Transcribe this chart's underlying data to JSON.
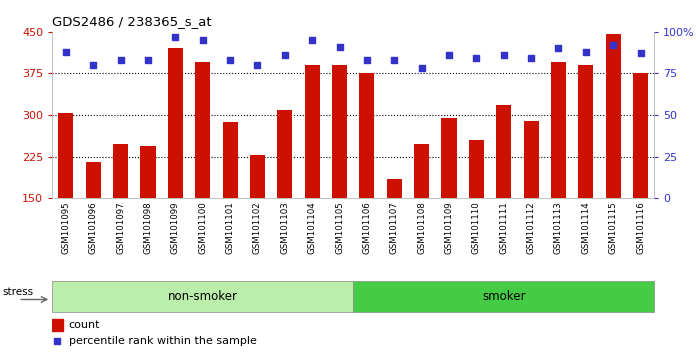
{
  "title": "GDS2486 / 238365_s_at",
  "samples": [
    "GSM101095",
    "GSM101096",
    "GSM101097",
    "GSM101098",
    "GSM101099",
    "GSM101100",
    "GSM101101",
    "GSM101102",
    "GSM101103",
    "GSM101104",
    "GSM101105",
    "GSM101106",
    "GSM101107",
    "GSM101108",
    "GSM101109",
    "GSM101110",
    "GSM101111",
    "GSM101112",
    "GSM101113",
    "GSM101114",
    "GSM101115",
    "GSM101116"
  ],
  "counts": [
    303,
    215,
    248,
    245,
    420,
    395,
    287,
    228,
    310,
    390,
    390,
    375,
    185,
    248,
    295,
    255,
    318,
    290,
    395,
    390,
    447,
    375
  ],
  "percentile_ranks": [
    88,
    80,
    83,
    83,
    97,
    95,
    83,
    80,
    86,
    95,
    91,
    83,
    83,
    78,
    86,
    84,
    86,
    84,
    90,
    88,
    92,
    87
  ],
  "non_smoker_count": 11,
  "smoker_count": 11,
  "ylim_left": [
    150,
    450
  ],
  "ylim_right": [
    0,
    100
  ],
  "yticks_left": [
    150,
    225,
    300,
    375,
    450
  ],
  "yticks_right": [
    0,
    25,
    50,
    75,
    100
  ],
  "bar_color": "#cc1100",
  "dot_color": "#3333cc",
  "non_smoker_color": "#bbeeaa",
  "smoker_color": "#44cc44",
  "stress_label": "stress",
  "group_label_non_smoker": "non-smoker",
  "group_label_smoker": "smoker",
  "legend_count": "count",
  "legend_percentile": "percentile rank within the sample",
  "background_color": "#ffffff",
  "axis_color_left": "#cc1100",
  "axis_color_right": "#3333cc",
  "xtick_bg": "#dddddd",
  "border_color": "#aaaaaa"
}
